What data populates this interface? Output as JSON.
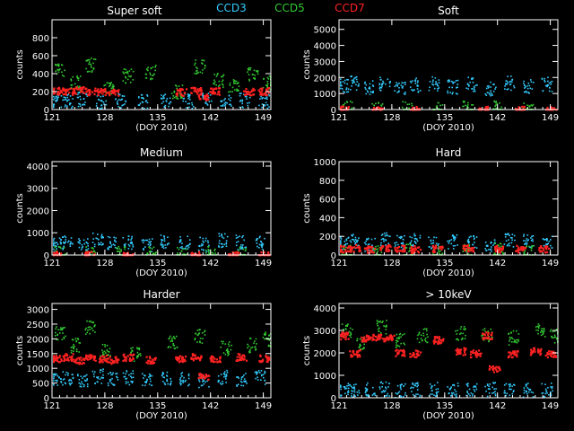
{
  "legend": [
    {
      "label": "CCD3",
      "color": "#33ccff"
    },
    {
      "label": "CCD5",
      "color": "#33cc33"
    },
    {
      "label": "CCD7",
      "color": "#ff2222"
    }
  ],
  "chart_data": [
    {
      "type": "scatter",
      "title": "Super soft",
      "xlabel": "(DOY 2010)",
      "ylabel": "counts",
      "xlim": [
        121,
        150
      ],
      "ylim": [
        0,
        1000
      ],
      "xticks": [
        121,
        128,
        135,
        142,
        149
      ],
      "yticks": [
        0,
        200,
        400,
        600,
        800
      ],
      "series": [
        {
          "name": "CCD3",
          "color": "#33ccff",
          "x": [
            121.5,
            123,
            125,
            127.5,
            130,
            133,
            136,
            139,
            141.5,
            144,
            146.5,
            149
          ],
          "y": [
            110,
            100,
            120,
            90,
            105,
            95,
            110,
            100,
            130,
            95,
            110,
            100
          ]
        },
        {
          "name": "CCD5",
          "color": "#33cc33",
          "x": [
            122,
            124,
            126,
            128.5,
            131,
            134,
            137.5,
            140.5,
            143,
            145,
            147.5,
            149.5
          ],
          "y": [
            450,
            300,
            500,
            250,
            380,
            420,
            200,
            480,
            330,
            260,
            400,
            300
          ]
        },
        {
          "name": "CCD7",
          "color": "#ff2222",
          "x": [
            121.5,
            123,
            124.5,
            126,
            127.5,
            129,
            138,
            140,
            141,
            142.5,
            147,
            149
          ],
          "y": [
            215,
            210,
            220,
            205,
            210,
            200,
            200,
            215,
            150,
            210,
            205,
            210
          ]
        }
      ]
    },
    {
      "type": "scatter",
      "title": "Soft",
      "xlabel": "(DOY 2010)",
      "ylabel": "counts",
      "xlim": [
        121,
        150
      ],
      "ylim": [
        0,
        5600
      ],
      "xticks": [
        121,
        128,
        135,
        142,
        149
      ],
      "yticks": [
        0,
        1000,
        2000,
        3000,
        4000,
        5000
      ],
      "series": [
        {
          "name": "CCD3",
          "color": "#33ccff",
          "x": [
            121.5,
            123,
            125,
            127,
            129,
            131,
            133.5,
            136,
            138.5,
            141,
            143.5,
            146,
            148.5
          ],
          "y": [
            1500,
            1700,
            1400,
            1600,
            1300,
            1550,
            1650,
            1450,
            1600,
            1350,
            1700,
            1500,
            1600
          ]
        },
        {
          "name": "CCD5",
          "color": "#33cc33",
          "x": [
            122,
            126,
            130,
            134,
            138,
            142,
            146
          ],
          "y": [
            150,
            100,
            120,
            90,
            110,
            130,
            100
          ]
        },
        {
          "name": "CCD7",
          "color": "#ff2222",
          "x": [
            121.5,
            126,
            131,
            140,
            145,
            149
          ],
          "y": [
            40,
            30,
            35,
            40,
            30,
            35
          ]
        }
      ]
    },
    {
      "type": "scatter",
      "title": "Medium",
      "xlabel": "(DOY 2010)",
      "ylabel": "counts",
      "xlim": [
        121,
        150
      ],
      "ylim": [
        0,
        4200
      ],
      "xticks": [
        121,
        128,
        135,
        142,
        149
      ],
      "yticks": [
        0,
        1000,
        2000,
        3000,
        4000
      ],
      "series": [
        {
          "name": "CCD3",
          "color": "#33ccff",
          "x": [
            121.5,
            123,
            125,
            127,
            129,
            131,
            133.5,
            136,
            138.5,
            141,
            143.5,
            146,
            148.5
          ],
          "y": [
            500,
            600,
            450,
            700,
            550,
            600,
            500,
            650,
            550,
            500,
            700,
            600,
            550
          ]
        },
        {
          "name": "CCD5",
          "color": "#33cc33",
          "x": [
            122,
            126,
            130,
            134,
            138,
            142,
            146
          ],
          "y": [
            100,
            80,
            90,
            70,
            100,
            90,
            80
          ]
        },
        {
          "name": "CCD7",
          "color": "#ff2222",
          "x": [
            121.5,
            126,
            131,
            140,
            145,
            149
          ],
          "y": [
            30,
            25,
            30,
            35,
            25,
            30
          ]
        }
      ]
    },
    {
      "type": "scatter",
      "title": "Hard",
      "xlabel": "(DOY 2010)",
      "ylabel": "counts",
      "xlim": [
        121,
        150
      ],
      "ylim": [
        0,
        1000
      ],
      "xticks": [
        121,
        128,
        135,
        142,
        149
      ],
      "yticks": [
        0,
        200,
        400,
        600,
        800,
        1000
      ],
      "series": [
        {
          "name": "CCD3",
          "color": "#33ccff",
          "x": [
            121.5,
            123,
            125,
            127,
            129,
            131,
            133.5,
            136,
            138.5,
            141,
            143.5,
            146,
            148.5
          ],
          "y": [
            130,
            150,
            120,
            170,
            140,
            160,
            130,
            150,
            140,
            120,
            170,
            150,
            140
          ]
        },
        {
          "name": "CCD5",
          "color": "#33cc33",
          "x": [
            122,
            126,
            130,
            134,
            138,
            142,
            146
          ],
          "y": [
            40,
            30,
            50,
            30,
            40,
            60,
            30
          ]
        },
        {
          "name": "CCD7",
          "color": "#ff2222",
          "x": [
            121.5,
            123,
            125,
            127,
            129,
            131,
            134,
            138,
            142,
            145,
            148
          ],
          "y": [
            75,
            80,
            70,
            80,
            75,
            70,
            75,
            80,
            70,
            75,
            70
          ]
        }
      ]
    },
    {
      "type": "scatter",
      "title": "Harder",
      "xlabel": "(DOY 2010)",
      "ylabel": "counts",
      "xlim": [
        121,
        150
      ],
      "ylim": [
        0,
        3200
      ],
      "xticks": [
        121,
        128,
        135,
        142,
        149
      ],
      "yticks": [
        0,
        500,
        1000,
        1500,
        2000,
        2500,
        3000
      ],
      "series": [
        {
          "name": "CCD3",
          "color": "#33ccff",
          "x": [
            121.5,
            123,
            125,
            127,
            129,
            131,
            133.5,
            136,
            138.5,
            141,
            143.5,
            146,
            148.5
          ],
          "y": [
            650,
            700,
            600,
            750,
            650,
            700,
            600,
            680,
            650,
            600,
            720,
            650,
            700
          ]
        },
        {
          "name": "CCD5",
          "color": "#33cc33",
          "x": [
            122,
            124,
            126,
            128,
            132,
            137,
            140.5,
            144,
            147.5,
            149.5
          ],
          "y": [
            2200,
            1800,
            2400,
            1600,
            1500,
            1900,
            2100,
            1700,
            1800,
            2000
          ]
        },
        {
          "name": "CCD7",
          "color": "#ff2222",
          "x": [
            121.5,
            123,
            124.5,
            126,
            127.5,
            129,
            131,
            134,
            138,
            140,
            141,
            142.5,
            146,
            149
          ],
          "y": [
            1350,
            1400,
            1300,
            1400,
            1350,
            1300,
            1400,
            1300,
            1350,
            1400,
            750,
            1350,
            1400,
            1350
          ]
        }
      ]
    },
    {
      "type": "scatter",
      "title": "> 10keV",
      "xlabel": "(DOY 2010)",
      "ylabel": "counts",
      "xlim": [
        121,
        150
      ],
      "ylim": [
        0,
        4200
      ],
      "xticks": [
        121,
        128,
        135,
        142,
        149
      ],
      "yticks": [
        0,
        1000,
        2000,
        3000,
        4000
      ],
      "series": [
        {
          "name": "CCD3",
          "color": "#33ccff",
          "x": [
            121.5,
            123,
            125,
            127,
            129,
            131,
            133.5,
            136,
            138.5,
            141,
            143.5,
            146,
            148.5
          ],
          "y": [
            400,
            350,
            380,
            420,
            350,
            380,
            400,
            370,
            350,
            400,
            380,
            360,
            390
          ]
        },
        {
          "name": "CCD5",
          "color": "#33cc33",
          "x": [
            122,
            124,
            126.5,
            129,
            132,
            137,
            140.5,
            144,
            147.5,
            149.5
          ],
          "y": [
            3000,
            2500,
            3200,
            2600,
            2800,
            2900,
            2800,
            2700,
            3000,
            2800
          ]
        },
        {
          "name": "CCD7",
          "color": "#ff2222",
          "x": [
            121.5,
            123,
            124.5,
            126,
            127.5,
            129,
            131,
            134,
            137,
            139,
            140.5,
            141.5,
            144,
            147,
            149
          ],
          "y": [
            2800,
            2000,
            2700,
            2750,
            2700,
            2050,
            2000,
            2600,
            2100,
            2000,
            2800,
            1300,
            2000,
            2100,
            2000
          ]
        }
      ]
    }
  ]
}
